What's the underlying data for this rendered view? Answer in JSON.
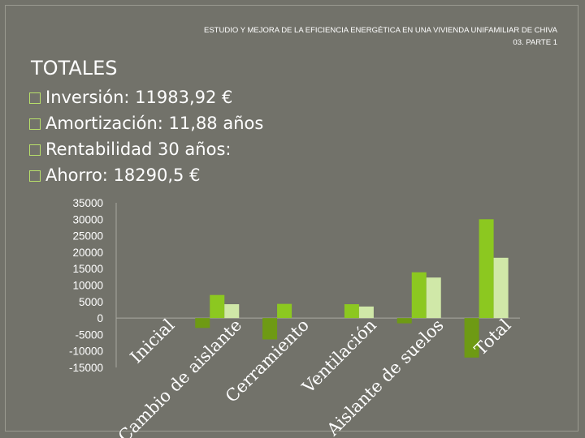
{
  "header": {
    "line1": "ESTUDIO Y MEJORA DE LA EFICIENCIA ENERGÉTICA EN UNA VIVIENDA UNIFAMILIAR DE CHIVA",
    "line2": "03. PARTE 1"
  },
  "title": "TOTALES",
  "bullets": [
    {
      "label": "Inversión: 11983,92 €"
    },
    {
      "label": "Amortización: 11,88 años"
    },
    {
      "label": "Rentabilidad 30 años:"
    },
    {
      "label": "Ahorro: 18290,5 €"
    }
  ],
  "colors": {
    "series1": "#6e9a14",
    "series2": "#8cc820",
    "series3": "#d0e8a8",
    "background": "#72726a"
  },
  "chart_data": {
    "type": "bar",
    "categories": [
      "Inicial",
      "Cambio de aislante",
      "Cerramiento",
      "Ventilación",
      "Aislante de suelos",
      "Total"
    ],
    "series": [
      {
        "values": [
          0,
          -3000,
          -6500,
          0,
          -1600,
          -12000
        ]
      },
      {
        "values": [
          0,
          7000,
          4300,
          4200,
          13900,
          30000
        ]
      },
      {
        "values": [
          0,
          4200,
          0,
          3500,
          12300,
          18300
        ]
      }
    ],
    "yticks": [
      "35000",
      "30000",
      "25000",
      "20000",
      "15000",
      "10000",
      "5000",
      "0",
      "-5000",
      "-10000",
      "-15000"
    ],
    "ylim": [
      -15000,
      35000
    ],
    "grid": false,
    "legend": "none"
  }
}
